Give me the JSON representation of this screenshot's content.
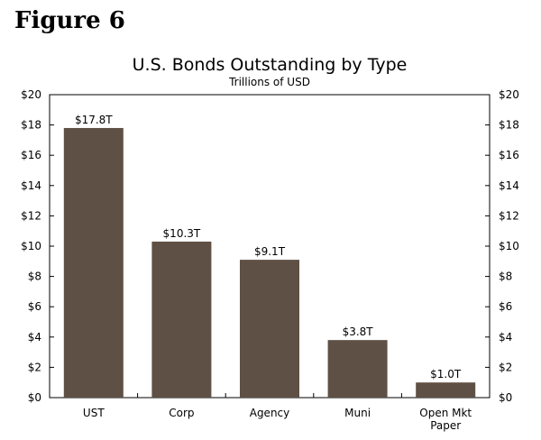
{
  "figure_label": "Figure 6",
  "chart_data": {
    "type": "bar",
    "title": "U.S. Bonds Outstanding by Type",
    "subtitle": "Trillions of USD",
    "categories": [
      [
        "UST"
      ],
      [
        "Corp"
      ],
      [
        "Agency"
      ],
      [
        "Muni"
      ],
      [
        "Open Mkt",
        "Paper"
      ]
    ],
    "values": [
      17.8,
      10.3,
      9.1,
      3.8,
      1.0
    ],
    "data_labels": [
      "$17.8T",
      "$10.3T",
      "$9.1T",
      "$3.8T",
      "$1.0T"
    ],
    "ylim": [
      0,
      20
    ],
    "yticks": [
      0,
      2,
      4,
      6,
      8,
      10,
      12,
      14,
      16,
      18,
      20
    ],
    "ytick_labels": [
      "$0",
      "$2",
      "$4",
      "$6",
      "$8",
      "$10",
      "$12",
      "$14",
      "$16",
      "$18",
      "$20"
    ],
    "grid": false,
    "bar_color": "#5e5044",
    "axis_color": "#000000"
  }
}
